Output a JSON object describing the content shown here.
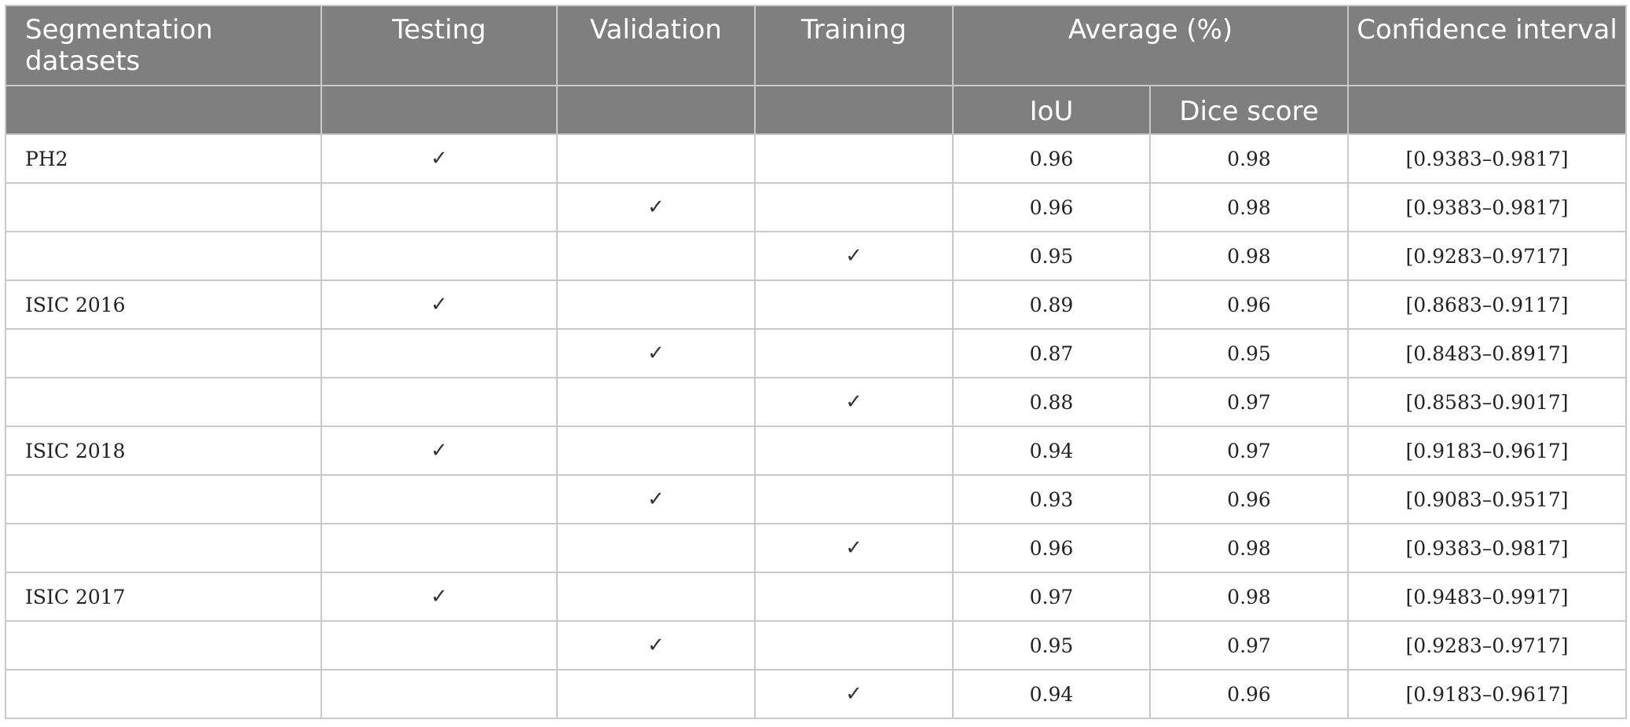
{
  "table": {
    "header_row1": {
      "datasets": "Segmentation datasets",
      "testing": "Testing",
      "validation": "Validation",
      "training": "Training",
      "average": "Average (%)",
      "confidence": "Confidence interval"
    },
    "header_row2": {
      "iou": "IoU",
      "dice": "Dice score"
    },
    "check_mark": "✓",
    "rows": [
      {
        "dataset": "PH2",
        "testing": "✓",
        "validation": "",
        "training": "",
        "iou": "0.96",
        "dice": "0.98",
        "ci": "[0.9383–0.9817]"
      },
      {
        "dataset": "",
        "testing": "",
        "validation": "✓",
        "training": "",
        "iou": "0.96",
        "dice": "0.98",
        "ci": "[0.9383–0.9817]"
      },
      {
        "dataset": "",
        "testing": "",
        "validation": "",
        "training": "✓",
        "iou": "0.95",
        "dice": "0.98",
        "ci": "[0.9283–0.9717]"
      },
      {
        "dataset": "ISIC 2016",
        "testing": "✓",
        "validation": "",
        "training": "",
        "iou": "0.89",
        "dice": "0.96",
        "ci": "[0.8683–0.9117]"
      },
      {
        "dataset": "",
        "testing": "",
        "validation": "✓",
        "training": "",
        "iou": "0.87",
        "dice": "0.95",
        "ci": "[0.8483–0.8917]"
      },
      {
        "dataset": "",
        "testing": "",
        "validation": "",
        "training": "✓",
        "iou": "0.88",
        "dice": "0.97",
        "ci": "[0.8583–0.9017]"
      },
      {
        "dataset": "ISIC 2018",
        "testing": "✓",
        "validation": "",
        "training": "",
        "iou": "0.94",
        "dice": "0.97",
        "ci": "[0.9183–0.9617]"
      },
      {
        "dataset": "",
        "testing": "",
        "validation": "✓",
        "training": "",
        "iou": "0.93",
        "dice": "0.96",
        "ci": "[0.9083–0.9517]"
      },
      {
        "dataset": "",
        "testing": "",
        "validation": "",
        "training": "✓",
        "iou": "0.96",
        "dice": "0.98",
        "ci": "[0.9383–0.9817]"
      },
      {
        "dataset": "ISIC 2017",
        "testing": "✓",
        "validation": "",
        "training": "",
        "iou": "0.97",
        "dice": "0.98",
        "ci": "[0.9483–0.9917]"
      },
      {
        "dataset": "",
        "testing": "",
        "validation": "✓",
        "training": "",
        "iou": "0.95",
        "dice": "0.97",
        "ci": "[0.9283–0.9717]"
      },
      {
        "dataset": "",
        "testing": "",
        "validation": "",
        "training": "✓",
        "iou": "0.94",
        "dice": "0.96",
        "ci": "[0.9183–0.9617]"
      }
    ]
  },
  "colors": {
    "header_bg": "#7f7f7f",
    "header_text": "#ffffff",
    "grid": "#c9c9c9",
    "body_text": "#222222"
  }
}
